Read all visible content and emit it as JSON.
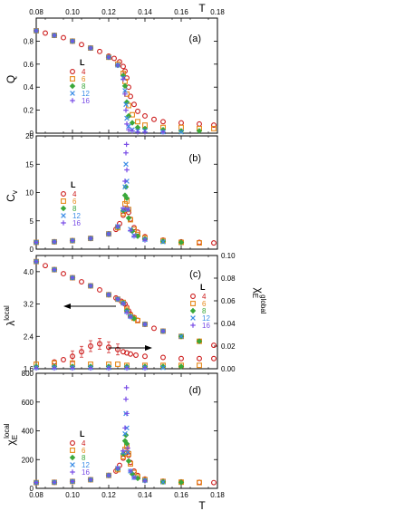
{
  "figure": {
    "top_xlabel": "T",
    "bottom_xlabel": "T",
    "xlim": [
      0.08,
      0.18
    ],
    "x_ticks": [
      "0.08",
      "0.10",
      "0.12",
      "0.14",
      "0.16",
      "0.18"
    ]
  },
  "legend": {
    "title": "L",
    "entries": [
      {
        "label": "4",
        "color": "#cc1a1a",
        "marker": "circle"
      },
      {
        "label": "6",
        "color": "#e6881a",
        "marker": "square"
      },
      {
        "label": "8",
        "color": "#3aa83a",
        "marker": "diamond"
      },
      {
        "label": "12",
        "color": "#3a8ce6",
        "marker": "cross"
      },
      {
        "label": "16",
        "color": "#7a4ee6",
        "marker": "plus"
      }
    ]
  },
  "chart_data": [
    {
      "type": "scatter",
      "panel_label": "(a)",
      "ylabel": "Q",
      "ylim": [
        0,
        1
      ],
      "y_ticks": [
        "0",
        "0.2",
        "0.4",
        "0.6",
        "0.8"
      ],
      "series": [
        {
          "name": "4",
          "x": [
            0.08,
            0.085,
            0.09,
            0.095,
            0.1,
            0.105,
            0.11,
            0.115,
            0.12,
            0.123,
            0.126,
            0.128,
            0.129,
            0.13,
            0.131,
            0.132,
            0.134,
            0.136,
            0.14,
            0.145,
            0.15,
            0.16,
            0.17,
            0.178
          ],
          "y": [
            0.89,
            0.87,
            0.85,
            0.83,
            0.8,
            0.77,
            0.74,
            0.71,
            0.67,
            0.65,
            0.62,
            0.58,
            0.54,
            0.48,
            0.4,
            0.32,
            0.25,
            0.19,
            0.15,
            0.12,
            0.1,
            0.09,
            0.08,
            0.07
          ]
        },
        {
          "name": "6",
          "x": [
            0.08,
            0.09,
            0.1,
            0.11,
            0.12,
            0.125,
            0.128,
            0.129,
            0.13,
            0.131,
            0.133,
            0.136,
            0.14,
            0.15,
            0.16,
            0.17,
            0.178
          ],
          "y": [
            0.89,
            0.85,
            0.8,
            0.74,
            0.66,
            0.6,
            0.52,
            0.45,
            0.34,
            0.24,
            0.16,
            0.1,
            0.07,
            0.05,
            0.05,
            0.04,
            0.04
          ]
        },
        {
          "name": "8",
          "x": [
            0.08,
            0.09,
            0.1,
            0.11,
            0.12,
            0.125,
            0.128,
            0.129,
            0.13,
            0.131,
            0.133,
            0.136,
            0.14,
            0.15,
            0.16,
            0.17
          ],
          "y": [
            0.89,
            0.85,
            0.8,
            0.74,
            0.66,
            0.59,
            0.5,
            0.41,
            0.27,
            0.15,
            0.09,
            0.05,
            0.04,
            0.03,
            0.02,
            0.02
          ]
        },
        {
          "name": "12",
          "x": [
            0.08,
            0.09,
            0.1,
            0.11,
            0.12,
            0.125,
            0.128,
            0.129,
            0.1295,
            0.13,
            0.131,
            0.133,
            0.136,
            0.14,
            0.15,
            0.16
          ],
          "y": [
            0.89,
            0.85,
            0.8,
            0.74,
            0.66,
            0.59,
            0.48,
            0.37,
            0.25,
            0.13,
            0.06,
            0.03,
            0.02,
            0.02,
            0.01,
            0.01
          ]
        },
        {
          "name": "16",
          "x": [
            0.08,
            0.09,
            0.1,
            0.11,
            0.12,
            0.125,
            0.128,
            0.129,
            0.1295,
            0.13,
            0.131,
            0.133,
            0.136,
            0.14,
            0.15
          ],
          "y": [
            0.89,
            0.85,
            0.8,
            0.74,
            0.66,
            0.59,
            0.47,
            0.34,
            0.2,
            0.08,
            0.03,
            0.02,
            0.01,
            0.01,
            0.01
          ]
        }
      ]
    },
    {
      "type": "scatter",
      "panel_label": "(b)",
      "ylabel": "C",
      "ylabel_sub": "v",
      "ylim": [
        0,
        20
      ],
      "y_ticks": [
        "0",
        "5",
        "10",
        "15",
        "20"
      ],
      "series": [
        {
          "name": "4",
          "x": [
            0.08,
            0.09,
            0.1,
            0.11,
            0.12,
            0.124,
            0.126,
            0.128,
            0.129,
            0.13,
            0.131,
            0.132,
            0.134,
            0.136,
            0.14,
            0.15,
            0.16,
            0.17,
            0.178
          ],
          "y": [
            1.2,
            1.3,
            1.5,
            1.9,
            2.7,
            3.5,
            4.5,
            6.0,
            6.8,
            7.2,
            6.5,
            5.3,
            3.8,
            3.0,
            2.2,
            1.6,
            1.3,
            1.2,
            1.1
          ]
        },
        {
          "name": "6",
          "x": [
            0.08,
            0.09,
            0.1,
            0.11,
            0.12,
            0.125,
            0.128,
            0.129,
            0.13,
            0.131,
            0.132,
            0.134,
            0.136,
            0.14,
            0.15,
            0.16,
            0.17
          ],
          "y": [
            1.2,
            1.3,
            1.5,
            1.9,
            2.7,
            3.8,
            6.3,
            8.0,
            8.5,
            7.0,
            5.2,
            3.5,
            2.6,
            2.0,
            1.5,
            1.2,
            1.1
          ]
        },
        {
          "name": "8",
          "x": [
            0.08,
            0.09,
            0.1,
            0.11,
            0.12,
            0.125,
            0.128,
            0.129,
            0.1295,
            0.13,
            0.131,
            0.133,
            0.136,
            0.14,
            0.15,
            0.16
          ],
          "y": [
            1.2,
            1.3,
            1.5,
            1.9,
            2.7,
            3.9,
            6.8,
            9.5,
            11.0,
            9.0,
            5.5,
            3.2,
            2.3,
            1.8,
            1.4,
            1.2
          ]
        },
        {
          "name": "12",
          "x": [
            0.08,
            0.09,
            0.1,
            0.11,
            0.12,
            0.125,
            0.128,
            0.129,
            0.1295,
            0.13,
            0.1305,
            0.132,
            0.134,
            0.14,
            0.15
          ],
          "y": [
            1.2,
            1.3,
            1.5,
            1.9,
            2.7,
            4.0,
            7.0,
            11.0,
            15.0,
            12.0,
            7.0,
            3.5,
            2.4,
            1.7,
            1.3
          ]
        },
        {
          "name": "16",
          "x": [
            0.08,
            0.09,
            0.1,
            0.11,
            0.12,
            0.125,
            0.128,
            0.129,
            0.1295,
            0.1298,
            0.13,
            0.1305,
            0.132,
            0.134,
            0.14
          ],
          "y": [
            1.2,
            1.3,
            1.5,
            1.9,
            2.7,
            4.0,
            7.2,
            12.0,
            17.0,
            18.5,
            14.0,
            7.0,
            3.3,
            2.3,
            1.6
          ]
        }
      ]
    },
    {
      "type": "scatter",
      "panel_label": "(c)",
      "ylabel": "λ",
      "ylabel_sup": "local",
      "ylim": [
        1.6,
        4.4
      ],
      "y_ticks": [
        "1.6",
        "2.4",
        "3.2",
        "4.0"
      ],
      "y2label": "χ",
      "y2label_sub": "E",
      "y2label_sup": "global",
      "y2lim": [
        0,
        0.1
      ],
      "y2_ticks": [
        "0.00",
        "0.02",
        "0.04",
        "0.06",
        "0.08",
        "0.10"
      ],
      "series": [
        {
          "name": "4",
          "axis": "left",
          "x": [
            0.08,
            0.085,
            0.09,
            0.095,
            0.1,
            0.105,
            0.11,
            0.115,
            0.12,
            0.124,
            0.127,
            0.129,
            0.13,
            0.131,
            0.132,
            0.134,
            0.136,
            0.14,
            0.145,
            0.15,
            0.16,
            0.17,
            0.178
          ],
          "y": [
            4.25,
            4.15,
            4.05,
            3.95,
            3.85,
            3.75,
            3.65,
            3.55,
            3.43,
            3.35,
            3.27,
            3.2,
            3.12,
            3.03,
            2.95,
            2.87,
            2.8,
            2.7,
            2.6,
            2.53,
            2.4,
            2.28,
            2.18
          ]
        },
        {
          "name": "6",
          "axis": "left",
          "x": [
            0.08,
            0.09,
            0.1,
            0.11,
            0.12,
            0.125,
            0.128,
            0.13,
            0.132,
            0.134,
            0.136,
            0.14,
            0.15,
            0.16,
            0.17
          ],
          "y": [
            4.25,
            4.05,
            3.85,
            3.65,
            3.43,
            3.32,
            3.24,
            3.07,
            2.92,
            2.85,
            2.79,
            2.7,
            2.53,
            2.4,
            2.28
          ]
        },
        {
          "name": "8",
          "axis": "left",
          "x": [
            0.08,
            0.09,
            0.1,
            0.11,
            0.12,
            0.125,
            0.128,
            0.13,
            0.132,
            0.134,
            0.14,
            0.15,
            0.16,
            0.17
          ],
          "y": [
            4.25,
            4.05,
            3.85,
            3.65,
            3.43,
            3.32,
            3.23,
            3.04,
            2.9,
            2.84,
            2.7,
            2.53,
            2.4,
            2.28
          ]
        },
        {
          "name": "12",
          "axis": "left",
          "x": [
            0.08,
            0.09,
            0.1,
            0.11,
            0.12,
            0.125,
            0.128,
            0.13,
            0.132,
            0.14,
            0.15,
            0.16
          ],
          "y": [
            4.25,
            4.05,
            3.85,
            3.65,
            3.43,
            3.32,
            3.22,
            3.01,
            2.89,
            2.7,
            2.53,
            2.4
          ]
        },
        {
          "name": "16",
          "axis": "left",
          "x": [
            0.08,
            0.09,
            0.1,
            0.11,
            0.12,
            0.125,
            0.128,
            0.13,
            0.132,
            0.14,
            0.15
          ],
          "y": [
            4.25,
            4.05,
            3.85,
            3.65,
            3.43,
            3.32,
            3.21,
            2.99,
            2.88,
            2.7,
            2.53
          ]
        },
        {
          "name": "4",
          "axis": "right",
          "x": [
            0.09,
            0.095,
            0.1,
            0.105,
            0.11,
            0.115,
            0.12,
            0.125,
            0.128,
            0.13,
            0.132,
            0.135,
            0.14,
            0.15,
            0.16,
            0.17,
            0.178
          ],
          "y": [
            0.006,
            0.008,
            0.011,
            0.015,
            0.02,
            0.022,
            0.019,
            0.017,
            0.015,
            0.014,
            0.013,
            0.012,
            0.011,
            0.01,
            0.009,
            0.009,
            0.009
          ]
        },
        {
          "name": "6",
          "axis": "right",
          "x": [
            0.08,
            0.09,
            0.1,
            0.11,
            0.12,
            0.125,
            0.13,
            0.14,
            0.15,
            0.16,
            0.17
          ],
          "y": [
            0.004,
            0.005,
            0.005,
            0.004,
            0.004,
            0.004,
            0.003,
            0.003,
            0.003,
            0.003,
            0.003
          ]
        },
        {
          "name": "8",
          "axis": "right",
          "x": [
            0.08,
            0.09,
            0.1,
            0.11,
            0.12,
            0.13,
            0.14,
            0.15,
            0.16
          ],
          "y": [
            0.002,
            0.002,
            0.002,
            0.002,
            0.002,
            0.002,
            0.002,
            0.002,
            0.002
          ]
        },
        {
          "name": "12",
          "axis": "right",
          "x": [
            0.08,
            0.09,
            0.1,
            0.11,
            0.12,
            0.13,
            0.14,
            0.15
          ],
          "y": [
            0.001,
            0.001,
            0.001,
            0.001,
            0.001,
            0.001,
            0.001,
            0.001
          ]
        },
        {
          "name": "16",
          "axis": "right",
          "x": [
            0.08,
            0.09,
            0.1,
            0.11,
            0.12,
            0.13,
            0.14
          ],
          "y": [
            0.0005,
            0.0005,
            0.0005,
            0.0005,
            0.0005,
            0.0005,
            0.0005
          ]
        }
      ],
      "annotations": [
        "arrow pointing left toward λ curve",
        "arrow pointing right toward χ curve"
      ]
    },
    {
      "type": "scatter",
      "panel_label": "(d)",
      "ylabel": "χ",
      "ylabel_sub": "E",
      "ylabel_sup": "local",
      "ylim": [
        0,
        800
      ],
      "y_ticks": [
        "0",
        "200",
        "400",
        "600",
        "800"
      ],
      "series": [
        {
          "name": "4",
          "x": [
            0.08,
            0.09,
            0.1,
            0.11,
            0.12,
            0.124,
            0.126,
            0.128,
            0.129,
            0.13,
            0.131,
            0.132,
            0.134,
            0.136,
            0.14,
            0.15,
            0.16,
            0.17,
            0.178
          ],
          "y": [
            40,
            42,
            48,
            60,
            90,
            120,
            160,
            210,
            240,
            250,
            230,
            180,
            120,
            90,
            65,
            50,
            45,
            42,
            40
          ]
        },
        {
          "name": "6",
          "x": [
            0.08,
            0.09,
            0.1,
            0.11,
            0.12,
            0.125,
            0.128,
            0.129,
            0.13,
            0.131,
            0.132,
            0.134,
            0.136,
            0.14,
            0.15,
            0.16,
            0.17
          ],
          "y": [
            40,
            42,
            48,
            60,
            90,
            130,
            220,
            270,
            290,
            240,
            170,
            110,
            80,
            60,
            48,
            43,
            40
          ]
        },
        {
          "name": "8",
          "x": [
            0.08,
            0.09,
            0.1,
            0.11,
            0.12,
            0.125,
            0.128,
            0.129,
            0.1295,
            0.13,
            0.131,
            0.133,
            0.136,
            0.14,
            0.15,
            0.16
          ],
          "y": [
            40,
            42,
            48,
            60,
            90,
            135,
            240,
            330,
            370,
            310,
            190,
            100,
            70,
            55,
            45,
            42
          ]
        },
        {
          "name": "12",
          "x": [
            0.08,
            0.09,
            0.1,
            0.11,
            0.12,
            0.125,
            0.128,
            0.129,
            0.1295,
            0.13,
            0.1305,
            0.132,
            0.134,
            0.14,
            0.15
          ],
          "y": [
            40,
            42,
            48,
            60,
            90,
            140,
            250,
            380,
            520,
            420,
            250,
            120,
            75,
            55,
            44
          ]
        },
        {
          "name": "16",
          "x": [
            0.08,
            0.09,
            0.1,
            0.11,
            0.12,
            0.125,
            0.128,
            0.129,
            0.1295,
            0.1298,
            0.13,
            0.1305,
            0.132,
            0.134,
            0.14
          ],
          "y": [
            40,
            42,
            48,
            60,
            90,
            140,
            260,
            420,
            620,
            700,
            520,
            280,
            120,
            75,
            52
          ]
        }
      ]
    }
  ]
}
